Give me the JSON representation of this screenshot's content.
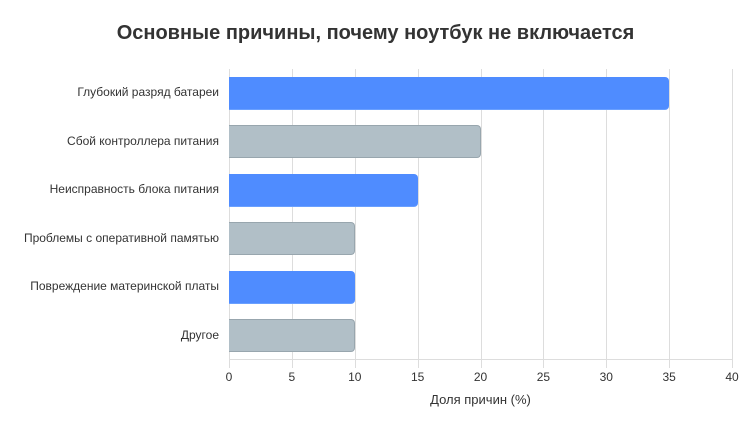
{
  "chart_data": {
    "type": "bar",
    "orientation": "horizontal",
    "title": "Основные причины, почему ноутбук не включается",
    "xlabel": "Доля причин (%)",
    "ylabel": "",
    "categories": [
      "Глубокий разряд батареи",
      "Сбой контроллера питания",
      "Неисправность блока питания",
      "Проблемы с оперативной памятью",
      "Повреждение материнской платы",
      "Другое"
    ],
    "values": [
      35,
      20,
      15,
      10,
      10,
      10
    ],
    "bar_colors": [
      "#4f8cff",
      "#b1bfc7",
      "#4f8cff",
      "#b1bfc7",
      "#4f8cff",
      "#b1bfc7"
    ],
    "xlim": [
      0,
      40
    ],
    "xticks": [
      "0",
      "5",
      "10",
      "15",
      "20",
      "25",
      "30",
      "35",
      "40"
    ],
    "grid": true,
    "legend": "none"
  }
}
